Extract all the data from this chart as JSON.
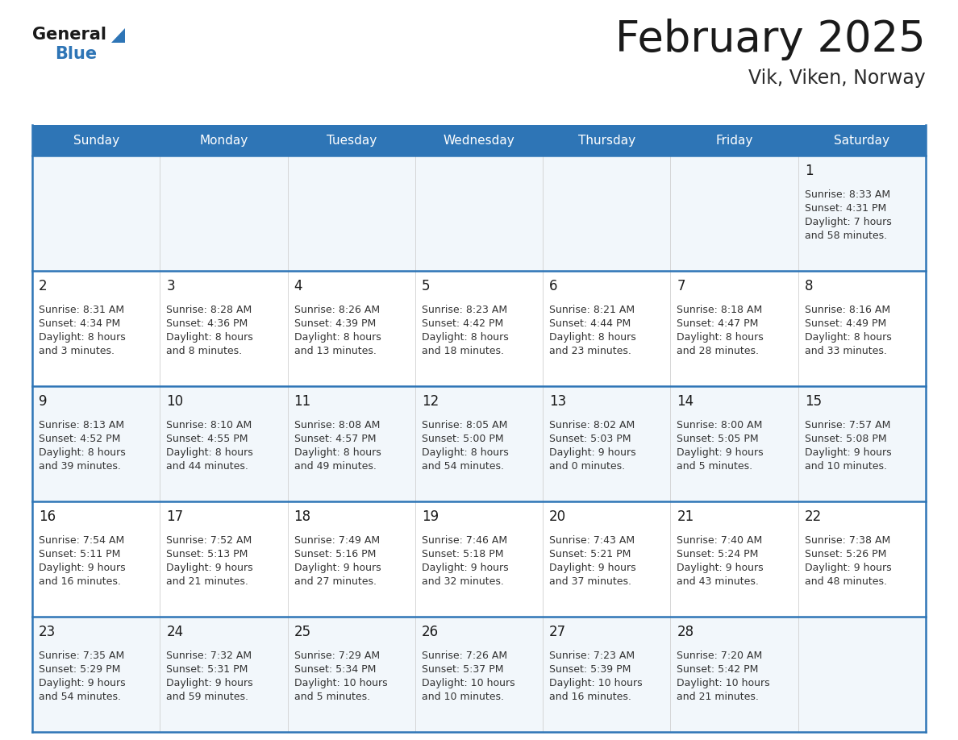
{
  "title": "February 2025",
  "subtitle": "Vik, Viken, Norway",
  "header_color": "#2e75b6",
  "header_text_color": "#ffffff",
  "cell_bg_even": "#f2f7fb",
  "cell_bg_odd": "#ffffff",
  "border_color": "#2e75b6",
  "row_line_color": "#2e75b6",
  "grid_line_color": "#d0d0d0",
  "day_headers": [
    "Sunday",
    "Monday",
    "Tuesday",
    "Wednesday",
    "Thursday",
    "Friday",
    "Saturday"
  ],
  "title_color": "#1a1a1a",
  "subtitle_color": "#2a2a2a",
  "number_color": "#1a1a1a",
  "info_color": "#333333",
  "logo_general_color": "#1a1a1a",
  "logo_blue_color": "#2e75b6",
  "logo_triangle_color": "#2e75b6",
  "calendar_data": [
    [
      null,
      null,
      null,
      null,
      null,
      null,
      {
        "day": 1,
        "sunrise": "8:33 AM",
        "sunset": "4:31 PM",
        "daylight_h": "7 hours",
        "daylight_m": "and 58 minutes."
      }
    ],
    [
      {
        "day": 2,
        "sunrise": "8:31 AM",
        "sunset": "4:34 PM",
        "daylight_h": "8 hours",
        "daylight_m": "and 3 minutes."
      },
      {
        "day": 3,
        "sunrise": "8:28 AM",
        "sunset": "4:36 PM",
        "daylight_h": "8 hours",
        "daylight_m": "and 8 minutes."
      },
      {
        "day": 4,
        "sunrise": "8:26 AM",
        "sunset": "4:39 PM",
        "daylight_h": "8 hours",
        "daylight_m": "and 13 minutes."
      },
      {
        "day": 5,
        "sunrise": "8:23 AM",
        "sunset": "4:42 PM",
        "daylight_h": "8 hours",
        "daylight_m": "and 18 minutes."
      },
      {
        "day": 6,
        "sunrise": "8:21 AM",
        "sunset": "4:44 PM",
        "daylight_h": "8 hours",
        "daylight_m": "and 23 minutes."
      },
      {
        "day": 7,
        "sunrise": "8:18 AM",
        "sunset": "4:47 PM",
        "daylight_h": "8 hours",
        "daylight_m": "and 28 minutes."
      },
      {
        "day": 8,
        "sunrise": "8:16 AM",
        "sunset": "4:49 PM",
        "daylight_h": "8 hours",
        "daylight_m": "and 33 minutes."
      }
    ],
    [
      {
        "day": 9,
        "sunrise": "8:13 AM",
        "sunset": "4:52 PM",
        "daylight_h": "8 hours",
        "daylight_m": "and 39 minutes."
      },
      {
        "day": 10,
        "sunrise": "8:10 AM",
        "sunset": "4:55 PM",
        "daylight_h": "8 hours",
        "daylight_m": "and 44 minutes."
      },
      {
        "day": 11,
        "sunrise": "8:08 AM",
        "sunset": "4:57 PM",
        "daylight_h": "8 hours",
        "daylight_m": "and 49 minutes."
      },
      {
        "day": 12,
        "sunrise": "8:05 AM",
        "sunset": "5:00 PM",
        "daylight_h": "8 hours",
        "daylight_m": "and 54 minutes."
      },
      {
        "day": 13,
        "sunrise": "8:02 AM",
        "sunset": "5:03 PM",
        "daylight_h": "9 hours",
        "daylight_m": "and 0 minutes."
      },
      {
        "day": 14,
        "sunrise": "8:00 AM",
        "sunset": "5:05 PM",
        "daylight_h": "9 hours",
        "daylight_m": "and 5 minutes."
      },
      {
        "day": 15,
        "sunrise": "7:57 AM",
        "sunset": "5:08 PM",
        "daylight_h": "9 hours",
        "daylight_m": "and 10 minutes."
      }
    ],
    [
      {
        "day": 16,
        "sunrise": "7:54 AM",
        "sunset": "5:11 PM",
        "daylight_h": "9 hours",
        "daylight_m": "and 16 minutes."
      },
      {
        "day": 17,
        "sunrise": "7:52 AM",
        "sunset": "5:13 PM",
        "daylight_h": "9 hours",
        "daylight_m": "and 21 minutes."
      },
      {
        "day": 18,
        "sunrise": "7:49 AM",
        "sunset": "5:16 PM",
        "daylight_h": "9 hours",
        "daylight_m": "and 27 minutes."
      },
      {
        "day": 19,
        "sunrise": "7:46 AM",
        "sunset": "5:18 PM",
        "daylight_h": "9 hours",
        "daylight_m": "and 32 minutes."
      },
      {
        "day": 20,
        "sunrise": "7:43 AM",
        "sunset": "5:21 PM",
        "daylight_h": "9 hours",
        "daylight_m": "and 37 minutes."
      },
      {
        "day": 21,
        "sunrise": "7:40 AM",
        "sunset": "5:24 PM",
        "daylight_h": "9 hours",
        "daylight_m": "and 43 minutes."
      },
      {
        "day": 22,
        "sunrise": "7:38 AM",
        "sunset": "5:26 PM",
        "daylight_h": "9 hours",
        "daylight_m": "and 48 minutes."
      }
    ],
    [
      {
        "day": 23,
        "sunrise": "7:35 AM",
        "sunset": "5:29 PM",
        "daylight_h": "9 hours",
        "daylight_m": "and 54 minutes."
      },
      {
        "day": 24,
        "sunrise": "7:32 AM",
        "sunset": "5:31 PM",
        "daylight_h": "9 hours",
        "daylight_m": "and 59 minutes."
      },
      {
        "day": 25,
        "sunrise": "7:29 AM",
        "sunset": "5:34 PM",
        "daylight_h": "10 hours",
        "daylight_m": "and 5 minutes."
      },
      {
        "day": 26,
        "sunrise": "7:26 AM",
        "sunset": "5:37 PM",
        "daylight_h": "10 hours",
        "daylight_m": "and 10 minutes."
      },
      {
        "day": 27,
        "sunrise": "7:23 AM",
        "sunset": "5:39 PM",
        "daylight_h": "10 hours",
        "daylight_m": "and 16 minutes."
      },
      {
        "day": 28,
        "sunrise": "7:20 AM",
        "sunset": "5:42 PM",
        "daylight_h": "10 hours",
        "daylight_m": "and 21 minutes."
      },
      null
    ]
  ]
}
